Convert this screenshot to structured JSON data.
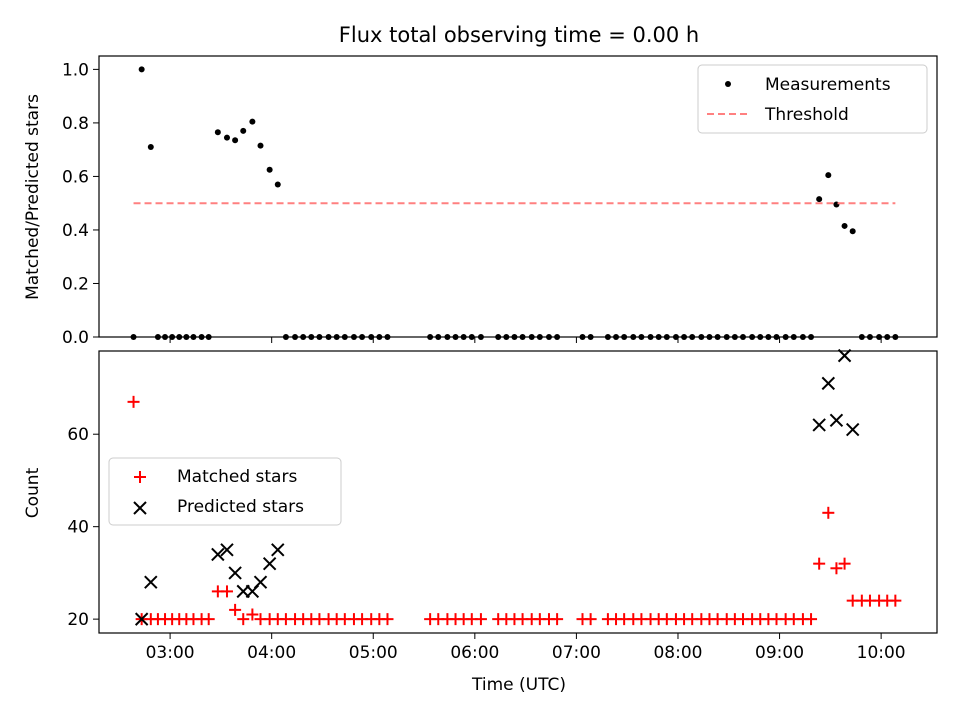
{
  "chart_data": [
    {
      "type": "scatter",
      "panel": "top",
      "title": "Flux total observing time = 0.00 h",
      "xlabel": "",
      "ylabel": "Matched/Predicted stars",
      "ylim": [
        0,
        1.05
      ],
      "yticks": [
        "0.0",
        "0.2",
        "0.4",
        "0.6",
        "0.8",
        "1.0"
      ],
      "xticks": [
        "03:00",
        "04:00",
        "05:00",
        "06:00",
        "07:00",
        "08:00",
        "09:00",
        "10:00"
      ],
      "xlim_hours": [
        2.3,
        10.55
      ],
      "legend": {
        "placement": "top-right",
        "entries": [
          "Measurements",
          "Threshold"
        ]
      },
      "series": [
        {
          "name": "Measurements",
          "marker": "dot",
          "color": "#000000",
          "x": [
            2.64,
            2.72,
            2.81,
            2.88,
            2.95,
            3.02,
            3.09,
            3.16,
            3.23,
            3.31,
            3.38,
            3.47,
            3.56,
            3.64,
            3.72,
            3.81,
            3.89,
            3.98,
            4.06,
            4.14,
            4.23,
            4.31,
            4.39,
            4.47,
            4.56,
            4.64,
            4.72,
            4.81,
            4.89,
            4.98,
            5.06,
            5.14,
            5.56,
            5.64,
            5.73,
            5.81,
            5.89,
            5.97,
            6.06,
            6.23,
            6.31,
            6.39,
            6.47,
            6.56,
            6.64,
            6.73,
            6.81,
            7.06,
            7.14,
            7.31,
            7.39,
            7.47,
            7.56,
            7.64,
            7.73,
            7.81,
            7.89,
            7.98,
            8.06,
            8.14,
            8.23,
            8.31,
            8.39,
            8.48,
            8.56,
            8.64,
            8.73,
            8.81,
            8.89,
            8.97,
            9.06,
            9.14,
            9.23,
            9.31,
            9.39,
            9.48,
            9.56,
            9.64,
            9.72,
            9.81,
            9.89,
            9.98,
            10.06,
            10.14
          ],
          "y": [
            0,
            1.0,
            0.71,
            0,
            0,
            0,
            0,
            0,
            0,
            0,
            0,
            0.765,
            0.745,
            0.735,
            0.77,
            0.805,
            0.715,
            0.625,
            0.57,
            0,
            0,
            0,
            0,
            0,
            0,
            0,
            0,
            0,
            0,
            0,
            0,
            0,
            0,
            0,
            0,
            0,
            0,
            0,
            0,
            0,
            0,
            0,
            0,
            0,
            0,
            0,
            0,
            0,
            0,
            0,
            0,
            0,
            0,
            0,
            0,
            0,
            0,
            0,
            0,
            0,
            0,
            0,
            0,
            0,
            0,
            0,
            0,
            0,
            0,
            0,
            0,
            0,
            0,
            0,
            0.515,
            0.605,
            0.495,
            0.415,
            0.395,
            0,
            0,
            0,
            0,
            0
          ]
        },
        {
          "name": "Threshold",
          "style": "dashed",
          "color": "#ff8080",
          "x": [
            2.64,
            10.14
          ],
          "y": [
            0.5,
            0.5
          ]
        }
      ]
    },
    {
      "type": "scatter",
      "panel": "bottom",
      "title": "",
      "xlabel": "Time (UTC)",
      "ylabel": "Count",
      "ylim": [
        17,
        78
      ],
      "yticks": [
        "20",
        "40",
        "60"
      ],
      "xticks": [
        "03:00",
        "04:00",
        "05:00",
        "06:00",
        "07:00",
        "08:00",
        "09:00",
        "10:00"
      ],
      "xlim_hours": [
        2.3,
        10.55
      ],
      "legend": {
        "placement": "center-left",
        "entries": [
          "Matched stars",
          "Predicted stars"
        ]
      },
      "series": [
        {
          "name": "Matched stars",
          "marker": "plus",
          "color": "#ff0000",
          "x": [
            2.64,
            2.72,
            2.81,
            2.88,
            2.95,
            3.02,
            3.09,
            3.16,
            3.23,
            3.31,
            3.38,
            3.47,
            3.56,
            3.64,
            3.72,
            3.81,
            3.89,
            3.98,
            4.06,
            4.14,
            4.23,
            4.31,
            4.39,
            4.47,
            4.56,
            4.64,
            4.72,
            4.81,
            4.89,
            4.98,
            5.06,
            5.14,
            5.56,
            5.64,
            5.73,
            5.81,
            5.89,
            5.97,
            6.06,
            6.23,
            6.31,
            6.39,
            6.47,
            6.56,
            6.64,
            6.73,
            6.81,
            7.06,
            7.14,
            7.31,
            7.39,
            7.47,
            7.56,
            7.64,
            7.73,
            7.81,
            7.89,
            7.98,
            8.06,
            8.14,
            8.23,
            8.31,
            8.39,
            8.48,
            8.56,
            8.64,
            8.73,
            8.81,
            8.89,
            8.97,
            9.06,
            9.14,
            9.23,
            9.31,
            9.39,
            9.48,
            9.56,
            9.64,
            9.72,
            9.81,
            9.89,
            9.98,
            10.06,
            10.14
          ],
          "y": [
            67,
            20,
            20,
            20,
            20,
            20,
            20,
            20,
            20,
            20,
            20,
            26,
            26,
            22,
            20,
            21,
            20,
            20,
            20,
            20,
            20,
            20,
            20,
            20,
            20,
            20,
            20,
            20,
            20,
            20,
            20,
            20,
            20,
            20,
            20,
            20,
            20,
            20,
            20,
            20,
            20,
            20,
            20,
            20,
            20,
            20,
            20,
            20,
            20,
            20,
            20,
            20,
            20,
            20,
            20,
            20,
            20,
            20,
            20,
            20,
            20,
            20,
            20,
            20,
            20,
            20,
            20,
            20,
            20,
            20,
            20,
            20,
            20,
            20,
            32,
            43,
            31,
            32,
            24,
            24,
            24,
            24,
            24,
            24
          ]
        },
        {
          "name": "Predicted stars",
          "marker": "x",
          "color": "#000000",
          "x": [
            2.72,
            2.81,
            3.47,
            3.56,
            3.64,
            3.72,
            3.81,
            3.89,
            3.98,
            4.06,
            9.39,
            9.48,
            9.56,
            9.64,
            9.72
          ],
          "y": [
            20,
            28,
            34,
            35,
            30,
            26,
            26,
            28,
            32,
            35,
            62,
            71,
            63,
            77,
            61
          ]
        }
      ]
    }
  ]
}
